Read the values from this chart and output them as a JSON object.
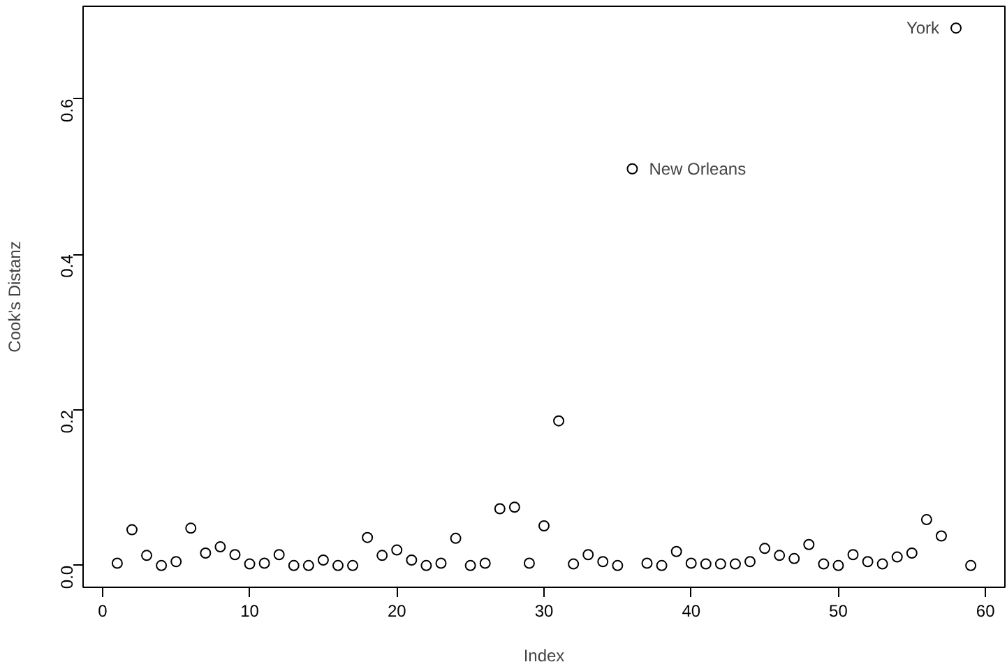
{
  "chart_data": {
    "type": "scatter",
    "xlabel": "Index",
    "ylabel": "Cook's Distanz",
    "x": [
      1,
      2,
      3,
      4,
      5,
      6,
      7,
      8,
      9,
      10,
      11,
      12,
      13,
      14,
      15,
      16,
      17,
      18,
      19,
      20,
      21,
      22,
      23,
      24,
      25,
      26,
      27,
      28,
      29,
      30,
      31,
      32,
      33,
      34,
      35,
      36,
      37,
      38,
      39,
      40,
      41,
      42,
      43,
      44,
      45,
      46,
      47,
      48,
      49,
      50,
      51,
      52,
      53,
      54,
      55,
      56,
      57,
      58,
      59
    ],
    "series": [
      {
        "color": "#000000",
        "values": [
          0.003,
          0.046,
          0.013,
          0.0,
          0.005,
          0.048,
          0.016,
          0.024,
          0.014,
          0.002,
          0.003,
          0.014,
          0.0,
          0.0,
          0.007,
          0.0,
          0.0,
          0.036,
          0.013,
          0.02,
          0.007,
          0.0,
          0.003,
          0.035,
          0.0,
          0.003,
          0.073,
          0.075,
          0.003,
          0.051,
          0.186,
          0.002,
          0.014,
          0.005,
          0.0,
          0.51,
          0.003,
          0.0,
          0.018,
          0.003,
          0.002,
          0.002,
          0.002,
          0.005,
          0.022,
          0.013,
          0.009,
          0.027,
          0.002,
          0.0,
          0.014,
          0.005,
          0.002,
          0.011,
          0.016,
          0.059,
          0.038,
          0.691,
          0.0
        ]
      }
    ],
    "xlim": [
      -1.32,
      61.32
    ],
    "ylim": [
      -0.028,
      0.719
    ],
    "xticks": [
      0,
      10,
      20,
      30,
      40,
      50,
      60
    ],
    "yticks": [
      {
        "value": 0,
        "label": "0.0"
      },
      {
        "value": 0.2,
        "label": "0.2"
      },
      {
        "value": 0.4,
        "label": "0.4"
      },
      {
        "value": 0.6,
        "label": "0.6"
      }
    ],
    "annotations": [
      {
        "text": "New Orleans",
        "x": 36,
        "y": 0.51
      },
      {
        "text": "York",
        "x": 58,
        "y": 0.691
      }
    ],
    "marker": "circle",
    "grid": false
  }
}
